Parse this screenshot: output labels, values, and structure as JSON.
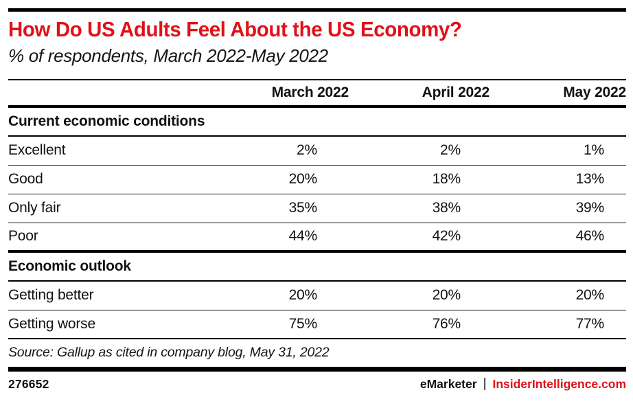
{
  "header": {
    "title": "How Do US Adults Feel About the US Economy?",
    "subtitle": "% of respondents, March 2022-May 2022"
  },
  "table": {
    "row_label_header": "",
    "columns": [
      "March 2022",
      "April 2022",
      "May 2022"
    ],
    "sections": [
      {
        "label": "Current economic conditions",
        "rows": [
          {
            "label": "Excellent",
            "values": [
              "2%",
              "2%",
              "1%"
            ]
          },
          {
            "label": "Good",
            "values": [
              "20%",
              "18%",
              "13%"
            ]
          },
          {
            "label": "Only fair",
            "values": [
              "35%",
              "38%",
              "39%"
            ]
          },
          {
            "label": "Poor",
            "values": [
              "44%",
              "42%",
              "46%"
            ]
          }
        ]
      },
      {
        "label": "Economic outlook",
        "rows": [
          {
            "label": "Getting better",
            "values": [
              "20%",
              "20%",
              "20%"
            ]
          },
          {
            "label": "Getting worse",
            "values": [
              "75%",
              "76%",
              "77%"
            ]
          }
        ]
      }
    ]
  },
  "source": "Source: Gallup as cited in company blog, May 31, 2022",
  "footer": {
    "chart_id": "276652",
    "brand_left": "eMarketer",
    "separator": "|",
    "brand_right": "InsiderIntelligence.com"
  },
  "colors": {
    "accent_red": "#e11019",
    "text_black": "#111111",
    "rule_black": "#000000"
  },
  "chart_data": {
    "type": "table",
    "title": "How Do US Adults Feel About the US Economy?",
    "subtitle": "% of respondents, March 2022-May 2022",
    "units": "% of respondents",
    "columns": [
      "March 2022",
      "April 2022",
      "May 2022"
    ],
    "sections": [
      {
        "section": "Current economic conditions",
        "rows": [
          {
            "label": "Excellent",
            "values": [
              2,
              2,
              1
            ]
          },
          {
            "label": "Good",
            "values": [
              20,
              18,
              13
            ]
          },
          {
            "label": "Only fair",
            "values": [
              35,
              38,
              39
            ]
          },
          {
            "label": "Poor",
            "values": [
              44,
              42,
              46
            ]
          }
        ]
      },
      {
        "section": "Economic outlook",
        "rows": [
          {
            "label": "Getting better",
            "values": [
              20,
              20,
              20
            ]
          },
          {
            "label": "Getting worse",
            "values": [
              75,
              76,
              77
            ]
          }
        ]
      }
    ],
    "source": "Source: Gallup as cited in company blog, May 31, 2022",
    "chart_id": "276652"
  }
}
